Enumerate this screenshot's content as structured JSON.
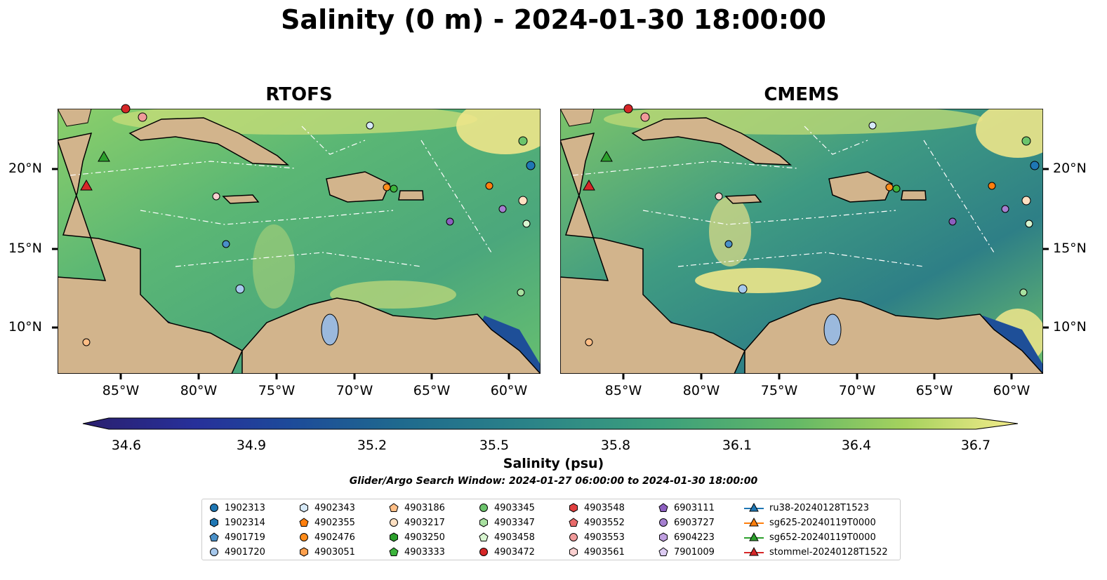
{
  "title": "Salinity (0 m) - 2024-01-30 18:00:00",
  "panels": [
    {
      "title": "RTOFS"
    },
    {
      "title": "CMEMS"
    }
  ],
  "lat_labels": [
    "20°N",
    "15°N",
    "10°N"
  ],
  "lon_labels": [
    "85°W",
    "80°W",
    "75°W",
    "70°W",
    "65°W",
    "60°W"
  ],
  "colorbar": {
    "label": "Salinity (psu)",
    "ticks": [
      "34.6",
      "34.9",
      "35.2",
      "35.5",
      "35.8",
      "36.1",
      "36.4",
      "36.7"
    ],
    "min": 34.6,
    "max": 36.7
  },
  "search_window": "Glider/Argo Search Window: 2024-01-27 06:00:00 to 2024-01-30 18:00:00",
  "legend": [
    {
      "label": "1902313",
      "marker": "circle",
      "color": "#1f77b4"
    },
    {
      "label": "1902314",
      "marker": "hexagon",
      "color": "#1f77b4"
    },
    {
      "label": "4901719",
      "marker": "pentagon",
      "color": "#4a90c8"
    },
    {
      "label": "4901720",
      "marker": "circle",
      "color": "#a6c8ec"
    },
    {
      "label": "4902343",
      "marker": "hexagon",
      "color": "#d6e9f8"
    },
    {
      "label": "4902355",
      "marker": "pentagon",
      "color": "#ff7f0e"
    },
    {
      "label": "4902476",
      "marker": "circle",
      "color": "#ff8c1a"
    },
    {
      "label": "4903051",
      "marker": "hexagon",
      "color": "#ffa04d"
    },
    {
      "label": "4903186",
      "marker": "pentagon",
      "color": "#ffbe86"
    },
    {
      "label": "4903217",
      "marker": "circle",
      "color": "#ffe0c2"
    },
    {
      "label": "4903250",
      "marker": "hexagon",
      "color": "#2ca02c"
    },
    {
      "label": "4903333",
      "marker": "pentagon",
      "color": "#3cb43c"
    },
    {
      "label": "4903345",
      "marker": "circle",
      "color": "#6cc46c"
    },
    {
      "label": "4903347",
      "marker": "hexagon",
      "color": "#a8e0a0"
    },
    {
      "label": "4903458",
      "marker": "pentagon",
      "color": "#d8f5d0"
    },
    {
      "label": "4903472",
      "marker": "circle",
      "color": "#d62728"
    },
    {
      "label": "4903548",
      "marker": "hexagon",
      "color": "#e04040"
    },
    {
      "label": "4903552",
      "marker": "pentagon",
      "color": "#e86a6a"
    },
    {
      "label": "4903553",
      "marker": "circle",
      "color": "#f09a9a"
    },
    {
      "label": "4903561",
      "marker": "hexagon",
      "color": "#fad0d0"
    },
    {
      "label": "6903111",
      "marker": "pentagon",
      "color": "#8c5fbf"
    },
    {
      "label": "6903727",
      "marker": "circle",
      "color": "#a57fd0"
    },
    {
      "label": "6904223",
      "marker": "hexagon",
      "color": "#bf9fe0"
    },
    {
      "label": "7901009",
      "marker": "pentagon",
      "color": "#dccbf2"
    },
    {
      "label": "ru38-20240128T1523",
      "marker": "triangle-line",
      "color": "#1f77b4"
    },
    {
      "label": "sg625-20240119T0000",
      "marker": "triangle-line",
      "color": "#ff7f0e"
    },
    {
      "label": "sg652-20240119T0000",
      "marker": "triangle-line",
      "color": "#2ca02c"
    },
    {
      "label": "stommel-20240128T1522",
      "marker": "triangle-line",
      "color": "#d62728"
    }
  ]
}
